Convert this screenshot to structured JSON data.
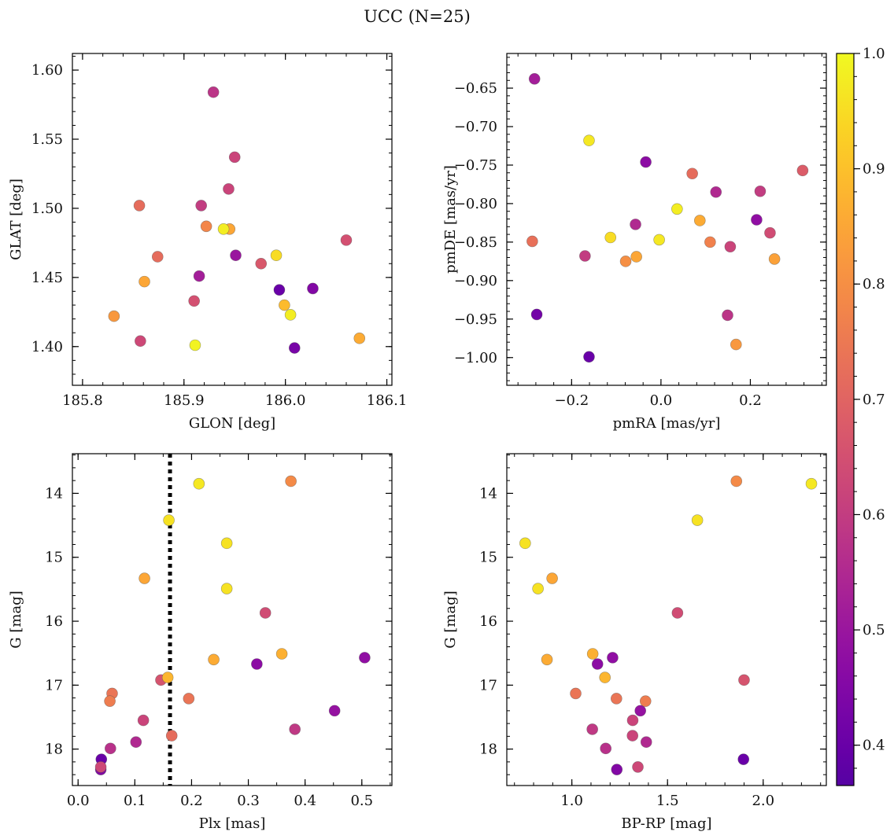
{
  "figure": {
    "title": "UCC (N=25)"
  },
  "colormap": {
    "name": "plasma",
    "min": 0.365,
    "max": 1.0,
    "ticks": [
      "0.4",
      "0.5",
      "0.6",
      "0.7",
      "0.8",
      "0.9",
      "1.0"
    ]
  },
  "chart_data": [
    {
      "type": "scatter",
      "xlabel": "GLON [deg]",
      "ylabel": "GLAT [deg]",
      "xlim": [
        185.79,
        186.105
      ],
      "ylim": [
        1.372,
        1.612
      ],
      "xticks": [
        "185.8",
        "185.9",
        "186.0",
        "186.1"
      ],
      "yticks": [
        "1.40",
        "1.45",
        "1.50",
        "1.55",
        "1.60"
      ],
      "points": [
        {
          "x": 185.929,
          "y": 1.584,
          "c": 0.58
        },
        {
          "x": 185.95,
          "y": 1.537,
          "c": 0.62
        },
        {
          "x": 185.944,
          "y": 1.514,
          "c": 0.62
        },
        {
          "x": 185.856,
          "y": 1.502,
          "c": 0.72
        },
        {
          "x": 185.917,
          "y": 1.502,
          "c": 0.6
        },
        {
          "x": 185.922,
          "y": 1.487,
          "c": 0.78
        },
        {
          "x": 185.945,
          "y": 1.485,
          "c": 0.85
        },
        {
          "x": 185.939,
          "y": 1.485,
          "c": 0.98
        },
        {
          "x": 186.06,
          "y": 1.477,
          "c": 0.65
        },
        {
          "x": 185.874,
          "y": 1.465,
          "c": 0.72
        },
        {
          "x": 185.951,
          "y": 1.466,
          "c": 0.5
        },
        {
          "x": 185.991,
          "y": 1.466,
          "c": 0.95
        },
        {
          "x": 185.976,
          "y": 1.46,
          "c": 0.67
        },
        {
          "x": 185.861,
          "y": 1.447,
          "c": 0.85
        },
        {
          "x": 185.915,
          "y": 1.451,
          "c": 0.52
        },
        {
          "x": 186.027,
          "y": 1.442,
          "c": 0.45
        },
        {
          "x": 185.994,
          "y": 1.441,
          "c": 0.4
        },
        {
          "x": 185.91,
          "y": 1.433,
          "c": 0.65
        },
        {
          "x": 185.999,
          "y": 1.43,
          "c": 0.89
        },
        {
          "x": 186.005,
          "y": 1.423,
          "c": 0.98
        },
        {
          "x": 185.831,
          "y": 1.422,
          "c": 0.82
        },
        {
          "x": 186.073,
          "y": 1.406,
          "c": 0.86
        },
        {
          "x": 185.857,
          "y": 1.404,
          "c": 0.63
        },
        {
          "x": 185.911,
          "y": 1.401,
          "c": 0.99
        },
        {
          "x": 186.009,
          "y": 1.399,
          "c": 0.43
        }
      ]
    },
    {
      "type": "scatter",
      "xlabel": "pmRA [mas/yr]",
      "ylabel": "pmDE [mas/yr]",
      "xlim": [
        -0.345,
        0.37
      ],
      "ylim": [
        -1.036,
        -0.605
      ],
      "xticks": [
        "−0.2",
        "0.0",
        "0.2"
      ],
      "yticks": [
        "−0.65",
        "−0.70",
        "−0.75",
        "−0.80",
        "−0.85",
        "−0.90",
        "−0.95",
        "−1.00"
      ],
      "points": [
        {
          "x": -0.283,
          "y": -0.638,
          "c": 0.52
        },
        {
          "x": -0.161,
          "y": -0.718,
          "c": 0.97
        },
        {
          "x": -0.034,
          "y": -0.746,
          "c": 0.47
        },
        {
          "x": 0.07,
          "y": -0.761,
          "c": 0.72
        },
        {
          "x": 0.317,
          "y": -0.757,
          "c": 0.68
        },
        {
          "x": 0.123,
          "y": -0.785,
          "c": 0.55
        },
        {
          "x": 0.222,
          "y": -0.784,
          "c": 0.6
        },
        {
          "x": 0.036,
          "y": -0.807,
          "c": 0.98
        },
        {
          "x": 0.214,
          "y": -0.821,
          "c": 0.48
        },
        {
          "x": 0.087,
          "y": -0.822,
          "c": 0.86
        },
        {
          "x": -0.057,
          "y": -0.827,
          "c": 0.55
        },
        {
          "x": 0.244,
          "y": -0.838,
          "c": 0.64
        },
        {
          "x": -0.113,
          "y": -0.844,
          "c": 0.95
        },
        {
          "x": -0.004,
          "y": -0.847,
          "c": 0.97
        },
        {
          "x": -0.288,
          "y": -0.849,
          "c": 0.73
        },
        {
          "x": 0.11,
          "y": -0.85,
          "c": 0.77
        },
        {
          "x": 0.155,
          "y": -0.856,
          "c": 0.62
        },
        {
          "x": -0.17,
          "y": -0.868,
          "c": 0.6
        },
        {
          "x": -0.055,
          "y": -0.869,
          "c": 0.85
        },
        {
          "x": 0.254,
          "y": -0.872,
          "c": 0.84
        },
        {
          "x": -0.079,
          "y": -0.875,
          "c": 0.8
        },
        {
          "x": -0.278,
          "y": -0.944,
          "c": 0.42
        },
        {
          "x": 0.149,
          "y": -0.945,
          "c": 0.58
        },
        {
          "x": 0.168,
          "y": -0.983,
          "c": 0.82
        },
        {
          "x": -0.161,
          "y": -0.999,
          "c": 0.4
        }
      ]
    },
    {
      "type": "scatter",
      "xlabel": "Plx [mas]",
      "ylabel": "G [mag]",
      "xlim": [
        -0.01,
        0.553
      ],
      "ylim": [
        18.57,
        13.38
      ],
      "xticks": [
        "0.0",
        "0.1",
        "0.2",
        "0.3",
        "0.4",
        "0.5"
      ],
      "yticks": [
        "14",
        "15",
        "16",
        "17",
        "18"
      ],
      "vline": {
        "x": 0.162
      },
      "points": [
        {
          "x": 0.213,
          "y": 13.85,
          "c": 0.97
        },
        {
          "x": 0.375,
          "y": 13.81,
          "c": 0.79
        },
        {
          "x": 0.16,
          "y": 14.42,
          "c": 0.96
        },
        {
          "x": 0.262,
          "y": 14.78,
          "c": 0.96
        },
        {
          "x": 0.117,
          "y": 15.33,
          "c": 0.85
        },
        {
          "x": 0.262,
          "y": 15.49,
          "c": 0.96
        },
        {
          "x": 0.33,
          "y": 15.87,
          "c": 0.64
        },
        {
          "x": 0.505,
          "y": 16.57,
          "c": 0.48
        },
        {
          "x": 0.359,
          "y": 16.51,
          "c": 0.87
        },
        {
          "x": 0.239,
          "y": 16.6,
          "c": 0.86
        },
        {
          "x": 0.315,
          "y": 16.67,
          "c": 0.47
        },
        {
          "x": 0.158,
          "y": 16.88,
          "c": 0.88
        },
        {
          "x": 0.146,
          "y": 16.92,
          "c": 0.66
        },
        {
          "x": 0.06,
          "y": 17.13,
          "c": 0.74
        },
        {
          "x": 0.195,
          "y": 17.21,
          "c": 0.74
        },
        {
          "x": 0.056,
          "y": 17.25,
          "c": 0.76
        },
        {
          "x": 0.452,
          "y": 17.4,
          "c": 0.49
        },
        {
          "x": 0.115,
          "y": 17.55,
          "c": 0.62
        },
        {
          "x": 0.382,
          "y": 17.69,
          "c": 0.59
        },
        {
          "x": 0.165,
          "y": 17.79,
          "c": 0.72
        },
        {
          "x": 0.102,
          "y": 17.89,
          "c": 0.55
        },
        {
          "x": 0.057,
          "y": 17.99,
          "c": 0.57
        },
        {
          "x": 0.041,
          "y": 18.16,
          "c": 0.4
        },
        {
          "x": 0.04,
          "y": 18.28,
          "c": 0.63
        },
        {
          "x": 0.04,
          "y": 18.32,
          "c": 0.45
        }
      ]
    },
    {
      "type": "scatter",
      "xlabel": "BP-RP [mag]",
      "ylabel": "G [mag]",
      "xlim": [
        0.66,
        2.33
      ],
      "ylim": [
        18.57,
        13.38
      ],
      "xticks": [
        "1.0",
        "1.5",
        "2.0"
      ],
      "yticks": [
        "14",
        "15",
        "16",
        "17",
        "18"
      ],
      "points": [
        {
          "x": 1.86,
          "y": 13.81,
          "c": 0.79
        },
        {
          "x": 2.252,
          "y": 13.85,
          "c": 0.97
        },
        {
          "x": 1.656,
          "y": 14.42,
          "c": 0.96
        },
        {
          "x": 0.756,
          "y": 14.78,
          "c": 0.96
        },
        {
          "x": 0.897,
          "y": 15.33,
          "c": 0.85
        },
        {
          "x": 0.823,
          "y": 15.49,
          "c": 0.96
        },
        {
          "x": 1.552,
          "y": 15.87,
          "c": 0.64
        },
        {
          "x": 1.109,
          "y": 16.51,
          "c": 0.87
        },
        {
          "x": 1.213,
          "y": 16.57,
          "c": 0.48
        },
        {
          "x": 0.87,
          "y": 16.6,
          "c": 0.86
        },
        {
          "x": 1.134,
          "y": 16.67,
          "c": 0.47
        },
        {
          "x": 1.173,
          "y": 16.88,
          "c": 0.88
        },
        {
          "x": 1.9,
          "y": 16.92,
          "c": 0.66
        },
        {
          "x": 1.02,
          "y": 17.13,
          "c": 0.74
        },
        {
          "x": 1.233,
          "y": 17.21,
          "c": 0.74
        },
        {
          "x": 1.385,
          "y": 17.25,
          "c": 0.76
        },
        {
          "x": 1.358,
          "y": 17.4,
          "c": 0.49
        },
        {
          "x": 1.318,
          "y": 17.55,
          "c": 0.62
        },
        {
          "x": 1.107,
          "y": 17.69,
          "c": 0.59
        },
        {
          "x": 1.317,
          "y": 17.79,
          "c": 0.62
        },
        {
          "x": 1.389,
          "y": 17.89,
          "c": 0.55
        },
        {
          "x": 1.177,
          "y": 17.99,
          "c": 0.57
        },
        {
          "x": 1.897,
          "y": 18.16,
          "c": 0.4
        },
        {
          "x": 1.345,
          "y": 18.28,
          "c": 0.63
        },
        {
          "x": 1.235,
          "y": 18.32,
          "c": 0.45
        }
      ]
    }
  ]
}
